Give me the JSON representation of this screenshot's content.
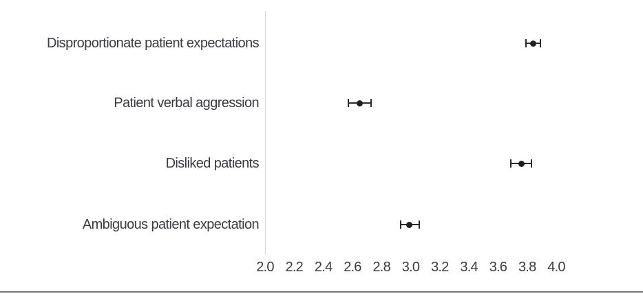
{
  "figure": {
    "background": "#ffffff"
  },
  "colors": {
    "axis_line": "#d6d6d6",
    "marker": "#262626",
    "text": "#3a3a42",
    "bottom_rule": "#787878"
  },
  "chart_data": {
    "type": "scatter",
    "subtype": "horizontal dot plot with error bars (means with confidence intervals)",
    "title": "",
    "xlabel": "",
    "ylabel": "",
    "categories": [
      "Disproportionate patient expectations",
      "Patient verbal aggression",
      "Disliked patients",
      "Ambiguous patient expectation"
    ],
    "means": [
      3.84,
      2.65,
      3.76,
      2.99
    ],
    "ci_low": [
      3.79,
      2.57,
      3.69,
      2.93
    ],
    "ci_high": [
      3.89,
      2.73,
      3.83,
      3.06
    ],
    "xlim": [
      2.0,
      4.0
    ],
    "x_ticks": [
      "2.0",
      "2.2",
      "2.4",
      "2.6",
      "2.8",
      "3.0",
      "3.2",
      "3.4",
      "3.6",
      "3.8",
      "4.0"
    ],
    "grid": false,
    "legend": false
  }
}
